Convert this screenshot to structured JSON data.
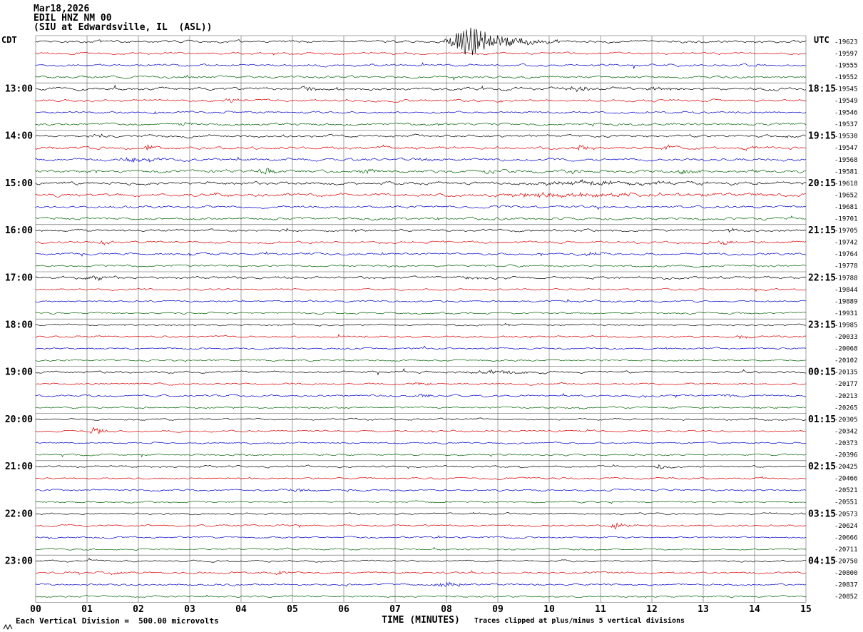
{
  "header": {
    "date": "Mar18,2026",
    "station": "EDIL HNZ NM 00",
    "location": "(SIU at Edwardsville, IL  (ASL))"
  },
  "left_axis": {
    "label": "CDT",
    "hours": [
      "13:00",
      "14:00",
      "15:00",
      "16:00",
      "17:00",
      "18:00",
      "19:00",
      "20:00",
      "21:00",
      "22:00",
      "23:00"
    ]
  },
  "right_axis": {
    "label": "UTC",
    "hours": [
      "18:15",
      "19:15",
      "20:15",
      "21:15",
      "22:15",
      "23:15",
      "00:15",
      "01:15",
      "02:15",
      "03:15",
      "04:15"
    ]
  },
  "x_axis": {
    "label": "TIME (MINUTES)",
    "ticks": [
      "00",
      "01",
      "02",
      "03",
      "04",
      "05",
      "06",
      "07",
      "08",
      "09",
      "10",
      "11",
      "12",
      "13",
      "14",
      "15"
    ]
  },
  "footer": {
    "left": "Each Vertical Division =  500.00 microvolts",
    "right": "Traces clipped at plus/minus 5 vertical divisions"
  },
  "chart_data": {
    "type": "line",
    "subtype": "seismogram-helicorder",
    "title": "EDIL HNZ NM 00 (SIU at Edwardsville, IL (ASL))",
    "minutes_per_line": 15,
    "x_range": [
      0,
      15
    ],
    "grid": true,
    "microvolts_per_division": 500.0,
    "clip_divisions": 5,
    "trace_color_cycle": [
      "#000000",
      "#dc0000",
      "#0000cd",
      "#006400"
    ],
    "traces": [
      {
        "value": -19623,
        "amp": 1.3,
        "events": [
          [
            7.9,
            8.45,
            9.7,
            22
          ]
        ]
      },
      {
        "value": -19597,
        "amp": 1.2,
        "events": []
      },
      {
        "value": -19555,
        "amp": 1.2,
        "events": []
      },
      {
        "value": -19552,
        "amp": 1.3,
        "events": [
          [
            2.8,
            2.95,
            3.3,
            2.5
          ]
        ]
      },
      {
        "value": -19545,
        "amp": 1.5,
        "events": [
          [
            5.15,
            5.3,
            5.65,
            4.5
          ],
          [
            10.2,
            10.5,
            11.4,
            3
          ],
          [
            11.7,
            12.0,
            12.9,
            3
          ]
        ]
      },
      {
        "value": -19549,
        "amp": 1.3,
        "events": [
          [
            3.6,
            3.8,
            4.25,
            4
          ]
        ]
      },
      {
        "value": -19546,
        "amp": 1.2,
        "events": []
      },
      {
        "value": -19537,
        "amp": 1.3,
        "events": [
          [
            2.7,
            2.85,
            3.2,
            3
          ]
        ]
      },
      {
        "value": -19530,
        "amp": 1.4,
        "events": [
          [
            1.0,
            1.15,
            1.5,
            3
          ]
        ]
      },
      {
        "value": -19547,
        "amp": 1.5,
        "events": [
          [
            2.05,
            2.15,
            2.5,
            5
          ],
          [
            7.2,
            7.3,
            7.6,
            3
          ],
          [
            10.4,
            10.6,
            11.1,
            4
          ],
          [
            12.1,
            12.25,
            12.6,
            3.5
          ],
          [
            13.7,
            13.85,
            14.2,
            3
          ]
        ]
      },
      {
        "value": -19568,
        "amp": 1.4,
        "events": [
          [
            1.6,
            1.9,
            2.7,
            4.5
          ],
          [
            7.4,
            7.5,
            7.8,
            3
          ]
        ]
      },
      {
        "value": -19581,
        "amp": 1.5,
        "events": [
          [
            4.25,
            4.45,
            4.95,
            5.5
          ],
          [
            6.25,
            6.45,
            6.8,
            4
          ],
          [
            8.7,
            8.8,
            9.1,
            3
          ],
          [
            10.3,
            10.45,
            10.8,
            3
          ],
          [
            12.4,
            12.6,
            13.05,
            4
          ],
          [
            13.9,
            14.0,
            14.3,
            3
          ]
        ]
      },
      {
        "value": -19618,
        "amp": 1.6,
        "events": [
          [
            9.0,
            10.5,
            15.0,
            2.4
          ]
        ]
      },
      {
        "value": -19652,
        "amp": 1.7,
        "events": [
          [
            3.3,
            3.45,
            3.8,
            2.5
          ],
          [
            8.8,
            9.8,
            15.0,
            3.0
          ]
        ]
      },
      {
        "value": -19681,
        "amp": 1.3,
        "events": []
      },
      {
        "value": -19701,
        "amp": 1.4,
        "events": []
      },
      {
        "value": -19705,
        "amp": 1.3,
        "events": [
          [
            6.0,
            6.15,
            6.5,
            2.2
          ]
        ]
      },
      {
        "value": -19742,
        "amp": 1.3,
        "events": [
          [
            1.2,
            1.3,
            1.6,
            2.5
          ],
          [
            13.2,
            13.4,
            13.8,
            3
          ]
        ]
      },
      {
        "value": -19764,
        "amp": 1.2,
        "events": [
          [
            10.6,
            10.8,
            11.2,
            3
          ]
        ]
      },
      {
        "value": -19778,
        "amp": 1.2,
        "events": []
      },
      {
        "value": -19788,
        "amp": 1.4,
        "events": [
          [
            0.9,
            1.1,
            1.7,
            3
          ],
          [
            8.2,
            8.4,
            8.9,
            2.5
          ]
        ]
      },
      {
        "value": -19844,
        "amp": 1.0,
        "events": []
      },
      {
        "value": -19889,
        "amp": 1.0,
        "events": []
      },
      {
        "value": -19931,
        "amp": 1.0,
        "events": []
      },
      {
        "value": -19985,
        "amp": 1.0,
        "events": []
      },
      {
        "value": -20033,
        "amp": 1.1,
        "events": [
          [
            13.6,
            13.75,
            14.1,
            2.5
          ]
        ]
      },
      {
        "value": -20068,
        "amp": 0.9,
        "events": []
      },
      {
        "value": -20102,
        "amp": 0.9,
        "events": []
      },
      {
        "value": -20135,
        "amp": 1.2,
        "events": [
          [
            8.2,
            9.0,
            10.3,
            2.4
          ]
        ]
      },
      {
        "value": -20177,
        "amp": 1.1,
        "events": [
          [
            7.3,
            7.45,
            7.8,
            3
          ]
        ]
      },
      {
        "value": -20213,
        "amp": 1.1,
        "events": [
          [
            7.4,
            7.55,
            7.9,
            3
          ],
          [
            13.3,
            13.45,
            13.8,
            3
          ]
        ]
      },
      {
        "value": -20265,
        "amp": 1.0,
        "events": []
      },
      {
        "value": -20305,
        "amp": 1.0,
        "events": []
      },
      {
        "value": -20342,
        "amp": 1.0,
        "events": [
          [
            1.05,
            1.15,
            1.4,
            7
          ]
        ]
      },
      {
        "value": -20373,
        "amp": 0.9,
        "events": []
      },
      {
        "value": -20396,
        "amp": 1.0,
        "events": []
      },
      {
        "value": -20425,
        "amp": 1.1,
        "events": [
          [
            12.0,
            12.15,
            12.5,
            2.5
          ]
        ]
      },
      {
        "value": -20466,
        "amp": 1.0,
        "events": []
      },
      {
        "value": -20521,
        "amp": 1.0,
        "events": [
          [
            4.8,
            5.1,
            5.6,
            2.5
          ]
        ]
      },
      {
        "value": -20551,
        "amp": 0.9,
        "events": []
      },
      {
        "value": -20573,
        "amp": 1.0,
        "events": []
      },
      {
        "value": -20624,
        "amp": 1.0,
        "events": [
          [
            11.1,
            11.3,
            11.7,
            4
          ]
        ]
      },
      {
        "value": -20666,
        "amp": 0.9,
        "events": []
      },
      {
        "value": -20711,
        "amp": 0.9,
        "events": []
      },
      {
        "value": -20750,
        "amp": 1.0,
        "events": []
      },
      {
        "value": -20800,
        "amp": 1.1,
        "events": [
          [
            1.4,
            1.5,
            1.8,
            3
          ],
          [
            4.6,
            4.75,
            5.05,
            3
          ]
        ]
      },
      {
        "value": -20837,
        "amp": 1.0,
        "events": [
          [
            7.6,
            8.0,
            8.8,
            2.8
          ]
        ]
      },
      {
        "value": -20852,
        "amp": 1.0,
        "events": []
      }
    ]
  }
}
